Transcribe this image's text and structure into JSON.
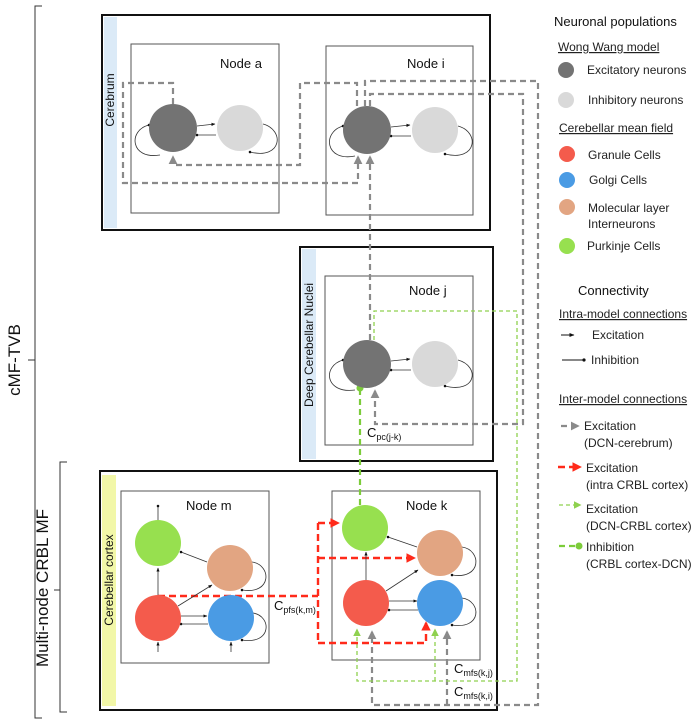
{
  "brackets": {
    "outer": "cMF-TVB",
    "inner": "Multi-node CRBL MF"
  },
  "groups": {
    "cerebrum": "Cerebrum",
    "dcn": "Deep Cerebellar Nuclei",
    "cortex": "Cerebellar cortex"
  },
  "nodes": {
    "a": "Node a",
    "i": "Node i",
    "j": "Node j",
    "m": "Node m",
    "k": "Node k"
  },
  "connection_labels": {
    "pfs": {
      "base": "C",
      "sub": "pfs(k,m)"
    },
    "pc": {
      "base": "C",
      "sub": "pc(j-k)"
    },
    "mfs_kj": {
      "base": "C",
      "sub": "mfs(k,j)"
    },
    "mfs_ki": {
      "base": "C",
      "sub": "mfs(k,i)"
    }
  },
  "legend": {
    "title": "Neuronal populations",
    "wong_wang": {
      "heading": "Wong Wang model",
      "items": [
        {
          "label": "Excitatory neurons",
          "color": "#737373"
        },
        {
          "label": "Inhibitory neurons",
          "color": "#d9d9d9"
        }
      ]
    },
    "cerebellar": {
      "heading": "Cerebellar mean field",
      "items": [
        {
          "label": "Granule Cells",
          "color": "#f45b4c"
        },
        {
          "label": "Golgi Cells",
          "color": "#4a9be4"
        },
        {
          "label": "Molecular layer",
          "label2": "Interneurons",
          "color": "#e2a582"
        },
        {
          "label": "Purkinje Cells",
          "color": "#97e04f"
        }
      ]
    },
    "connectivity_title": "Connectivity",
    "intra": {
      "heading": "Intra-model connections",
      "items": [
        {
          "label": "Excitation"
        },
        {
          "label": "Inhibition"
        }
      ]
    },
    "inter": {
      "heading": "Inter-model connections",
      "items": [
        {
          "label": "Excitation",
          "label2": "(DCN-cerebrum)",
          "color": "#8a8a8a"
        },
        {
          "label": "Excitation",
          "label2": "(intra CRBL cortex)",
          "color": "#ff2a1a"
        },
        {
          "label": "Excitation",
          "label2": "(DCN-CRBL cortex)",
          "color": "#8fd14f"
        },
        {
          "label": "Inhibition",
          "label2": "(CRBL cortex-DCN)",
          "color": "#7ccc3a"
        }
      ]
    }
  }
}
